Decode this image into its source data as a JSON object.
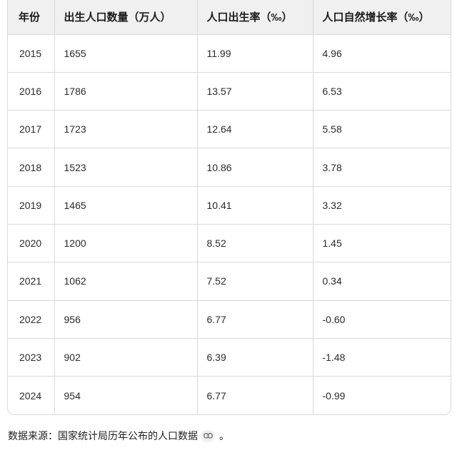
{
  "table": {
    "headers": [
      "年份",
      "出生人口数量（万人）",
      "人口出生率（‰）",
      "人口自然增长率（‰）"
    ],
    "rows": [
      [
        "2015",
        "1655",
        "11.99",
        "4.96"
      ],
      [
        "2016",
        "1786",
        "13.57",
        "6.53"
      ],
      [
        "2017",
        "1723",
        "12.64",
        "5.58"
      ],
      [
        "2018",
        "1523",
        "10.86",
        "3.78"
      ],
      [
        "2019",
        "1465",
        "10.41",
        "3.32"
      ],
      [
        "2020",
        "1200",
        "8.52",
        "1.45"
      ],
      [
        "2021",
        "1062",
        "7.52",
        "0.34"
      ],
      [
        "2022",
        "956",
        "6.77",
        "-0.60"
      ],
      [
        "2023",
        "902",
        "6.39",
        "-1.48"
      ],
      [
        "2024",
        "954",
        "6.77",
        "-0.99"
      ]
    ]
  },
  "footer": {
    "source_text": "数据来源：国家统计局历年公布的人口数据",
    "link_icon": "link-icon",
    "end_punct": "。"
  },
  "colors": {
    "header_bg": "#f0f0f0",
    "border": "#d9d9d9",
    "chip_bg": "#efefef"
  }
}
